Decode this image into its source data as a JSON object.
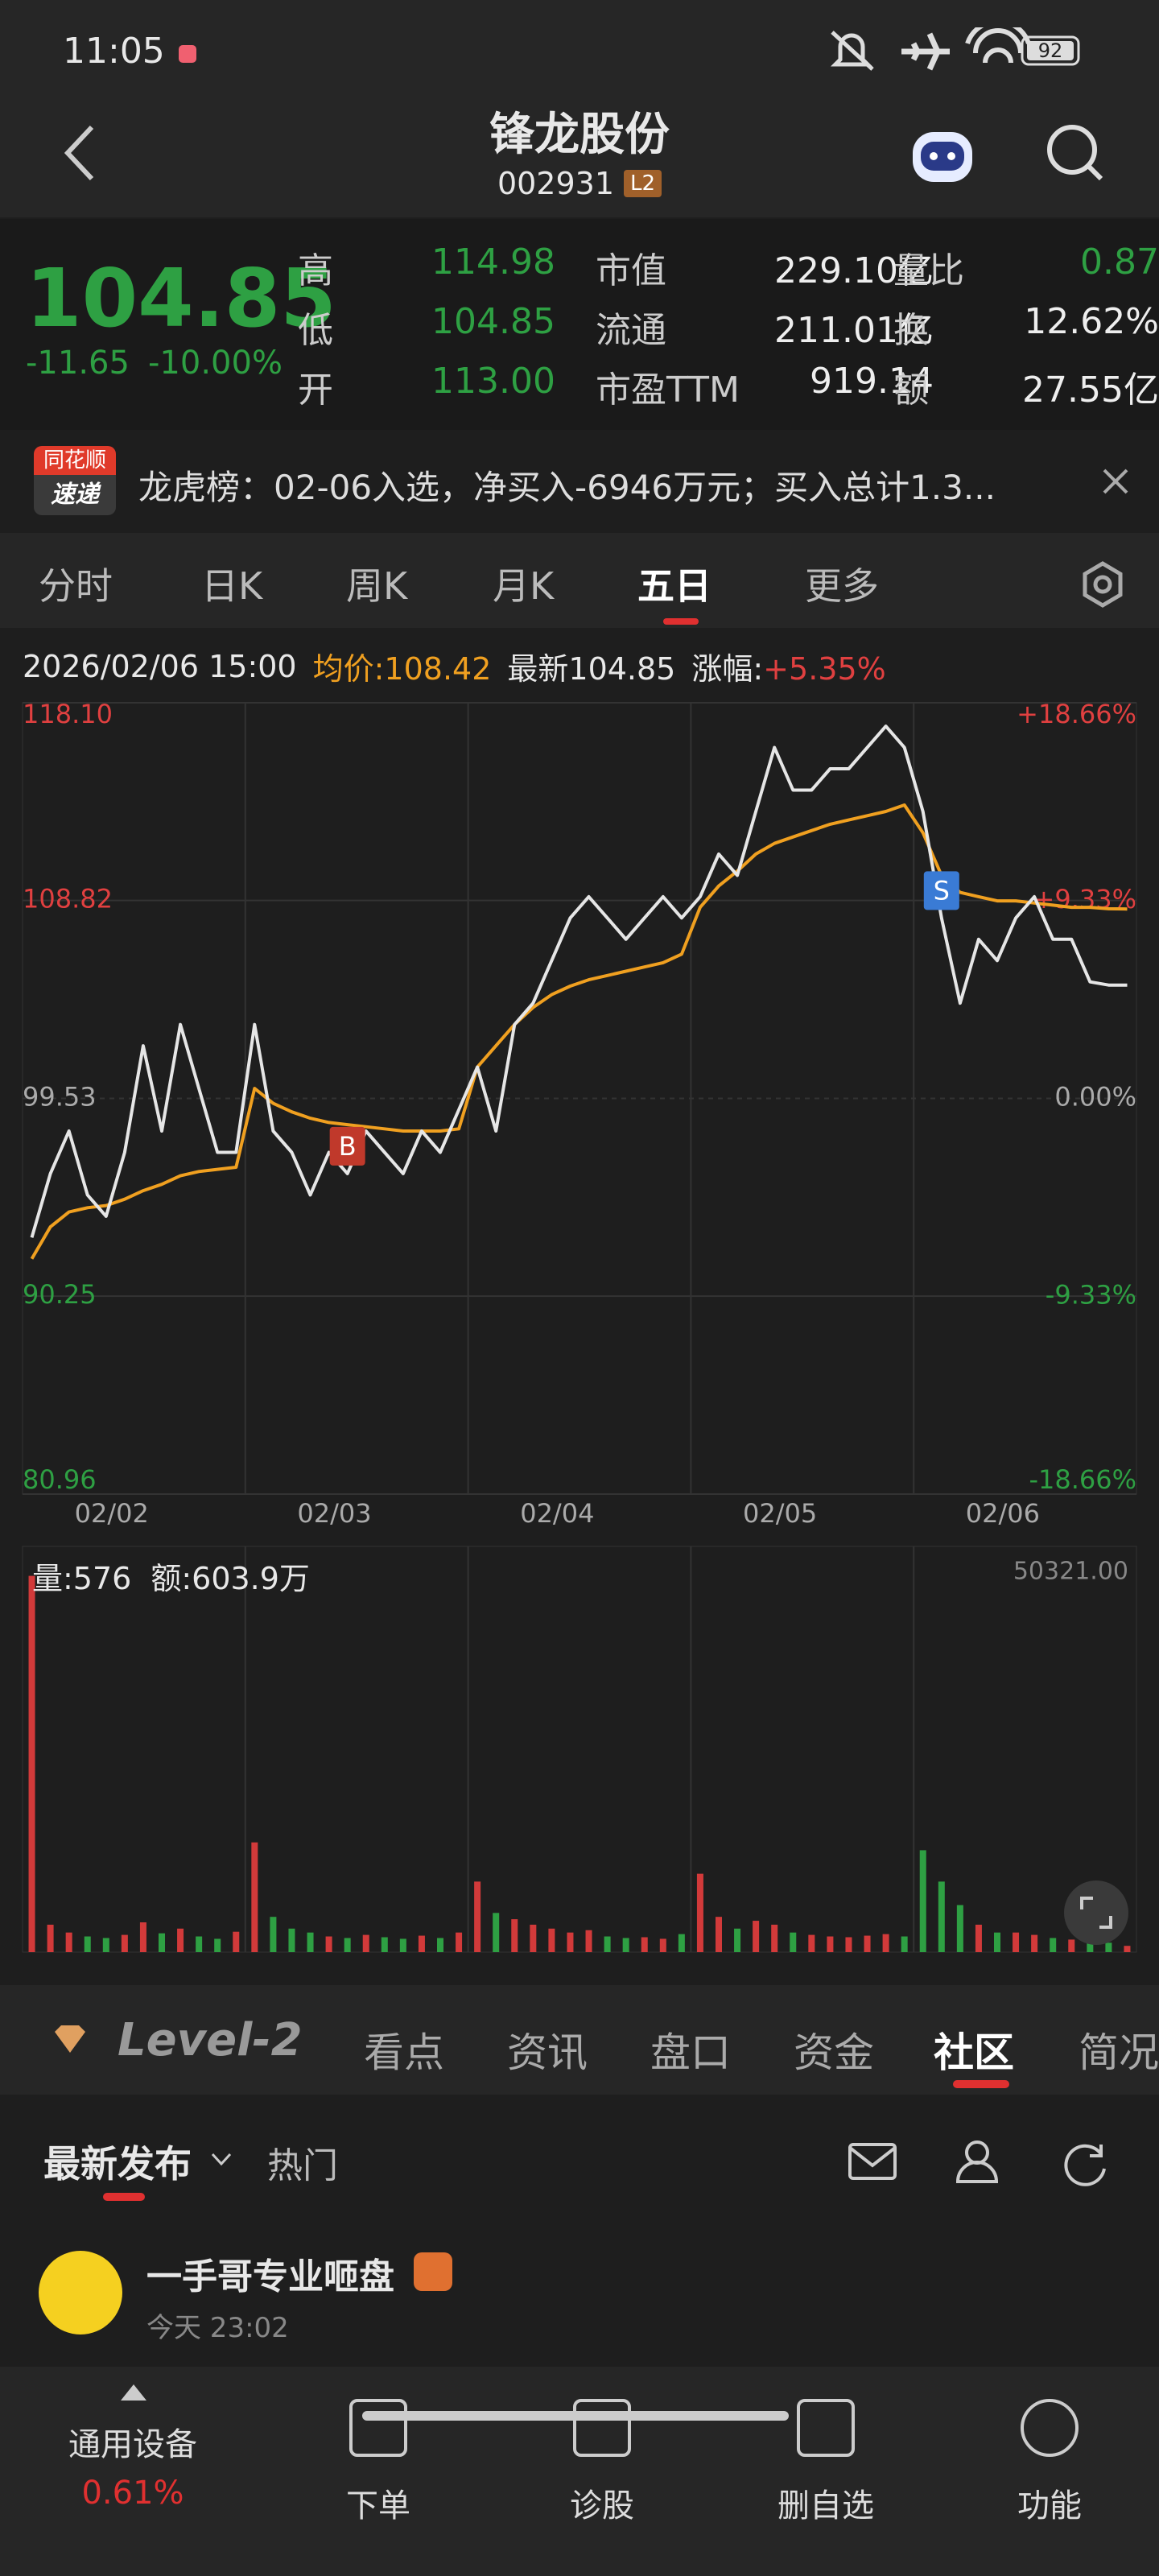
{
  "status": {
    "time": "11:05",
    "battery": "92"
  },
  "header": {
    "title": "锋龙股份",
    "code": "002931",
    "badge": "L2"
  },
  "quote": {
    "price": "104.85",
    "change": "-11.65",
    "percent": "-10.00%",
    "rows": [
      [
        {
          "label": "高",
          "value": "114.98"
        },
        {
          "label": "市值",
          "value": "229.10亿"
        },
        {
          "label": "量比",
          "value": "0.87"
        }
      ],
      [
        {
          "label": "低",
          "value": "104.85"
        },
        {
          "label": "流通",
          "value": "211.01亿"
        },
        {
          "label": "换",
          "value": "12.62%"
        }
      ],
      [
        {
          "label": "开",
          "value": "113.00"
        },
        {
          "label": "市盈TTM",
          "value": "919.14"
        },
        {
          "label": "额",
          "value": "27.55亿"
        }
      ]
    ]
  },
  "news": {
    "badge_top": "同花顺",
    "badge_bottom": "速递",
    "text": "龙虎榜：02-06入选，净买入-6946万元；买入总计1.3..."
  },
  "tabs": [
    "分时",
    "日K",
    "周K",
    "月K",
    "五日",
    "更多"
  ],
  "info": {
    "time": "2026/02/06 15:00",
    "avg": "均价:108.42",
    "latest": "最新104.85",
    "change_label": "涨幅:",
    "change_value": "+5.35%"
  },
  "chart_data": {
    "type": "line",
    "ylim": [
      80.96,
      118.1
    ],
    "yticks": [
      {
        "value": 118.1,
        "label": "118.10"
      },
      108.82,
      99.53,
      90.25,
      80.96
    ],
    "y2lim": [
      -18.66,
      18.66
    ],
    "y2ticks": [
      {
        "value": 18.66,
        "label": "+18.66%"
      },
      {
        "value": 9.33,
        "label": "+9.33%"
      },
      {
        "value": 0,
        "label": "0.00%"
      },
      {
        "value": -9.33,
        "label": "-9.33%"
      },
      {
        "value": -18.66,
        "label": "-18.66%"
      }
    ],
    "price_color": "#e6e6e6",
    "avg_color": "#f0a020",
    "grid": true,
    "markers": [
      "B",
      "S"
    ],
    "days": [
      {
        "date": "02/02",
        "price": [
          93,
          96,
          98,
          95,
          94,
          97,
          102,
          98,
          103,
          100,
          97,
          97
        ],
        "avg": [
          92,
          93.5,
          94.2,
          94.4,
          94.5,
          94.8,
          95.2,
          95.5,
          95.9,
          96.1,
          96.2,
          96.3
        ],
        "volume": [
          48000,
          3500,
          2500,
          2000,
          1800,
          2200,
          3800,
          2400,
          3000,
          2000,
          1700,
          2600
        ]
      },
      {
        "date": "02/03",
        "price": [
          103,
          98,
          97,
          95,
          97,
          96,
          98,
          97,
          96,
          98,
          97,
          99
        ],
        "avg": [
          100,
          99.3,
          98.9,
          98.6,
          98.4,
          98.3,
          98.2,
          98.1,
          98.0,
          98.0,
          98.0,
          98.1
        ],
        "volume": [
          14000,
          4500,
          3000,
          2500,
          2000,
          1800,
          2200,
          1900,
          1700,
          2100,
          1800,
          2500
        ]
      },
      {
        "date": "02/04",
        "price": [
          101,
          98,
          103,
          104,
          106,
          108,
          109,
          108,
          107,
          108,
          109,
          108
        ],
        "avg": [
          101,
          102,
          103,
          103.8,
          104.4,
          104.8,
          105.1,
          105.3,
          105.5,
          105.7,
          105.9,
          106.3
        ],
        "volume": [
          9000,
          5000,
          4200,
          3500,
          3000,
          2500,
          2800,
          2000,
          1800,
          1900,
          1700,
          2300
        ]
      },
      {
        "date": "02/05",
        "price": [
          109,
          111,
          110,
          113,
          116,
          114,
          114,
          115,
          115,
          116,
          117,
          116
        ],
        "avg": [
          108.5,
          109.5,
          110.2,
          111,
          111.5,
          111.8,
          112.1,
          112.4,
          112.6,
          112.8,
          113.0,
          113.3
        ],
        "volume": [
          10000,
          4500,
          3000,
          4000,
          3500,
          2500,
          2200,
          2000,
          1900,
          2100,
          2300,
          2000
        ]
      },
      {
        "date": "02/06",
        "price": [
          113,
          108,
          104,
          107,
          106,
          108,
          109,
          107,
          107,
          105,
          104.85,
          104.85
        ],
        "avg": [
          112,
          110,
          109.2,
          109,
          108.8,
          108.8,
          108.7,
          108.6,
          108.5,
          108.5,
          108.43,
          108.42
        ],
        "volume": [
          13000,
          9000,
          6000,
          3500,
          2500,
          2500,
          2200,
          1800,
          1600,
          1500,
          1200,
          800
        ]
      }
    ]
  },
  "volume_chart": {
    "label": "量:576",
    "amount": "额:603.9万",
    "ylim": [
      0,
      50321
    ],
    "yticks": [
      {
        "value": 50321,
        "label": "50321.00"
      }
    ],
    "up_color": "#d23a3a",
    "down_color": "#2ea043"
  },
  "lower_tabs": {
    "brand": "Level-2",
    "items": [
      "看点",
      "资讯",
      "盘口",
      "资金",
      "社区",
      "简况"
    ]
  },
  "feed": {
    "latest": "最新发布",
    "hot": "热门",
    "post": {
      "user": "一手哥专业咂盘",
      "time": "今天 23:02"
    }
  },
  "bottom_nav": {
    "sector": "通用设备",
    "sector_change": "0.61%",
    "items": [
      "下单",
      "诊股",
      "删自选",
      "功能"
    ]
  }
}
